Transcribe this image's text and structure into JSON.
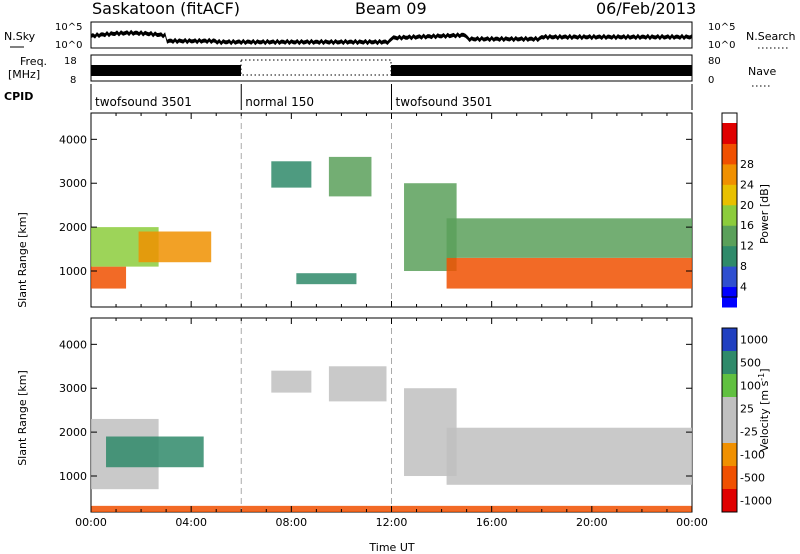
{
  "header": {
    "site": "Saskatoon (fitACF)",
    "beam": "Beam 09",
    "date": "06/Feb/2013"
  },
  "noise_panel": {
    "left_label": "N.Sky",
    "right_label": "N.Search",
    "left_ticks": [
      "10^5",
      "10^0"
    ],
    "right_ticks": [
      "10^5",
      "10^0"
    ]
  },
  "freq_panel": {
    "left_label_line1": "Freq.",
    "left_label_line2": "[MHz]",
    "right_label": "Nave",
    "left_ticks": [
      "18",
      "8"
    ],
    "right_ticks": [
      "80",
      "0"
    ]
  },
  "cpid": {
    "label": "CPID",
    "segments": [
      {
        "name": "twofsound 3501",
        "start_hour": 0,
        "end_hour": 6
      },
      {
        "name": "normal 150",
        "start_hour": 6,
        "end_hour": 12
      },
      {
        "name": "twofsound 3501",
        "start_hour": 12,
        "end_hour": 24
      }
    ]
  },
  "chart_data": [
    {
      "type": "heatmap",
      "title": "",
      "xlabel": "",
      "ylabel": "Slant Range [km]",
      "xlim": [
        0,
        24
      ],
      "ylim": [
        180,
        4600
      ],
      "yticks": [
        "1000",
        "2000",
        "3000",
        "4000"
      ],
      "colorbar": {
        "label": "Power [dB]",
        "ticks": [
          "4",
          "8",
          "12",
          "16",
          "20",
          "24",
          "28"
        ],
        "colors": [
          "#0000ff",
          "#2f4fd0",
          "#2f8a6a",
          "#5aa05a",
          "#8ccc3c",
          "#e8c000",
          "#f09000",
          "#f05000",
          "#e00000"
        ]
      },
      "regions_description": "approximate echo regions (hours, km, dB)",
      "regions": [
        {
          "t0": 0.0,
          "t1": 1.4,
          "r0": 600,
          "r1": 1100,
          "value": 26
        },
        {
          "t0": 0.0,
          "t1": 2.7,
          "r0": 1100,
          "r1": 2000,
          "value": 16
        },
        {
          "t0": 1.9,
          "t1": 4.8,
          "r0": 1200,
          "r1": 1900,
          "value": 24
        },
        {
          "t0": 7.2,
          "t1": 8.8,
          "r0": 2900,
          "r1": 3500,
          "value": 10
        },
        {
          "t0": 9.5,
          "t1": 11.2,
          "r0": 2700,
          "r1": 3600,
          "value": 14
        },
        {
          "t0": 8.2,
          "t1": 10.6,
          "r0": 700,
          "r1": 950,
          "value": 9
        },
        {
          "t0": 12.5,
          "t1": 14.6,
          "r0": 1000,
          "r1": 3000,
          "value": 12
        },
        {
          "t0": 14.2,
          "t1": 24.0,
          "r0": 600,
          "r1": 1300,
          "value": 27
        },
        {
          "t0": 14.2,
          "t1": 24.0,
          "r0": 1300,
          "r1": 2200,
          "value": 14
        }
      ]
    },
    {
      "type": "heatmap",
      "title": "",
      "xlabel": "Time UT",
      "ylabel": "Slant Range [km]",
      "xlim": [
        0,
        24
      ],
      "ylim": [
        180,
        4600
      ],
      "yticks": [
        "1000",
        "2000",
        "3000",
        "4000"
      ],
      "xticks": [
        "00:00",
        "04:00",
        "08:00",
        "12:00",
        "16:00",
        "20:00",
        "00:00"
      ],
      "colorbar": {
        "label": "Velocity [m s^-1]",
        "ticks": [
          "1000",
          "500",
          "100",
          "25",
          "-25",
          "-100",
          "-500",
          "-1000"
        ],
        "colors": [
          "#2040c0",
          "#2f8a6a",
          "#60c040",
          "#c0c0c0",
          "#c0c0c0",
          "#f09000",
          "#f05000",
          "#e00000"
        ]
      },
      "regions": [
        {
          "t0": 0.0,
          "t1": 2.7,
          "r0": 700,
          "r1": 2300,
          "value": 20
        },
        {
          "t0": 0.6,
          "t1": 4.5,
          "r0": 1200,
          "r1": 1900,
          "value": 120
        },
        {
          "t0": 7.2,
          "t1": 8.8,
          "r0": 2900,
          "r1": 3400,
          "value": 10
        },
        {
          "t0": 9.5,
          "t1": 11.8,
          "r0": 2700,
          "r1": 3500,
          "value": 15
        },
        {
          "t0": 12.5,
          "t1": 14.6,
          "r0": 1000,
          "r1": 3000,
          "value": 10
        },
        {
          "t0": 14.2,
          "t1": 24.0,
          "r0": 800,
          "r1": 2100,
          "value": 5
        },
        {
          "t0": 0.0,
          "t1": 24.0,
          "r0": 180,
          "r1": 320,
          "value": -150
        }
      ]
    }
  ]
}
